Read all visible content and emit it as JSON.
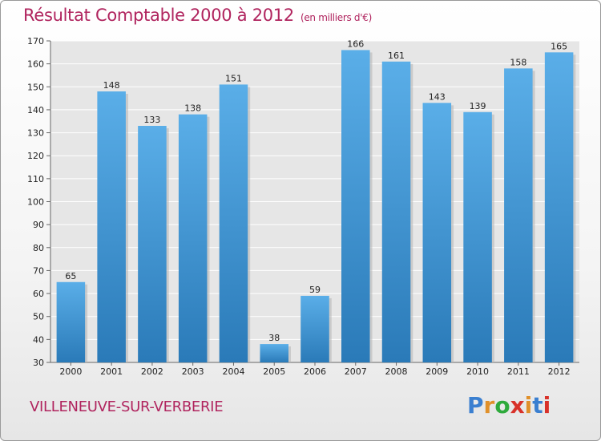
{
  "chart_data": {
    "type": "bar",
    "title": "Résultat Comptable 2000 à 2012",
    "subtitle": "(en milliers d'€)",
    "categories": [
      "2000",
      "2001",
      "2002",
      "2003",
      "2004",
      "2005",
      "2006",
      "2007",
      "2008",
      "2009",
      "2010",
      "2011",
      "2012"
    ],
    "values": [
      65,
      148,
      133,
      138,
      151,
      38,
      59,
      166,
      161,
      143,
      139,
      158,
      165
    ],
    "ylim": [
      30,
      170
    ],
    "yticks": [
      30,
      40,
      50,
      60,
      70,
      80,
      90,
      100,
      110,
      120,
      130,
      140,
      150,
      160,
      170
    ],
    "grid": true,
    "legend": "none",
    "colors": {
      "bar_top": "#5aaee8",
      "bar_bottom": "#2a7ab8",
      "title": "#b0245e"
    }
  },
  "footer": {
    "city": "VILLENEUVE-SUR-VERBERIE",
    "logo_letters": [
      "P",
      "r",
      "o",
      "x",
      "i",
      "t",
      "i"
    ],
    "logo_colors": [
      "#3a7fd0",
      "#e0902a",
      "#2eaa3c",
      "#d8322a",
      "#e0902a",
      "#3a7fd0",
      "#d8322a"
    ]
  }
}
